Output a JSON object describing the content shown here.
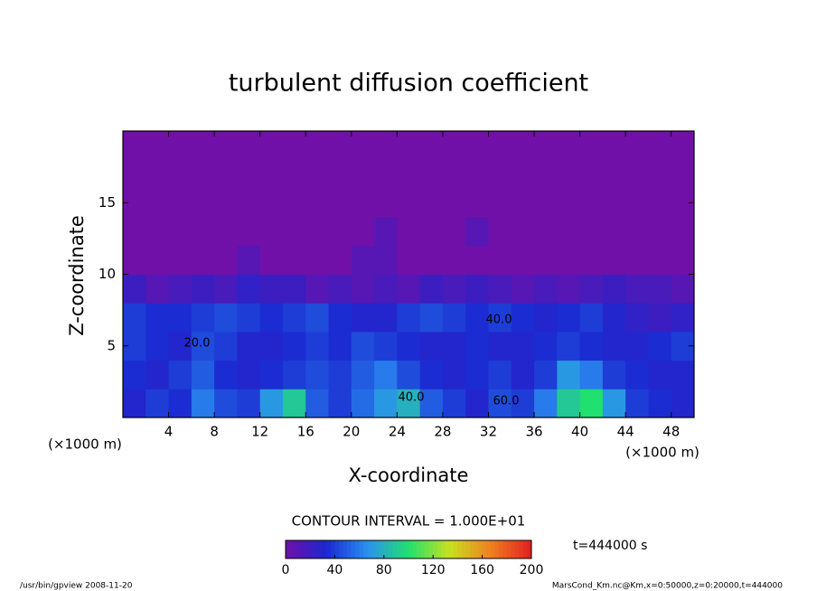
{
  "chart_data": {
    "type": "heatmap",
    "title": "turbulent diffusion coefficient",
    "x_label": "X-coordinate",
    "y_label": "Z-coordinate",
    "x_unit_label": "(×1000 m)",
    "y_unit_label": "(×1000 m)",
    "xlim": [
      0,
      50
    ],
    "ylim": [
      0,
      20
    ],
    "xticks": [
      4,
      8,
      12,
      16,
      20,
      24,
      28,
      32,
      36,
      40,
      44,
      48
    ],
    "yticks": [
      5,
      10,
      15
    ],
    "x": [
      1,
      3,
      5,
      7,
      9,
      11,
      13,
      15,
      17,
      19,
      21,
      23,
      25,
      27,
      29,
      31,
      33,
      35,
      37,
      39,
      41,
      43,
      45,
      47,
      49
    ],
    "y": [
      1,
      3,
      5,
      7,
      9,
      11,
      13,
      15,
      17,
      19
    ],
    "z": [
      [
        30,
        40,
        35,
        60,
        45,
        40,
        70,
        90,
        50,
        40,
        55,
        70,
        80,
        50,
        40,
        30,
        45,
        40,
        60,
        90,
        100,
        70,
        40,
        35,
        30
      ],
      [
        35,
        30,
        40,
        50,
        35,
        30,
        35,
        40,
        45,
        40,
        50,
        60,
        45,
        35,
        30,
        35,
        40,
        30,
        40,
        70,
        60,
        40,
        35,
        30,
        30
      ],
      [
        40,
        35,
        30,
        45,
        40,
        30,
        30,
        35,
        40,
        35,
        45,
        40,
        35,
        30,
        30,
        35,
        30,
        30,
        35,
        40,
        35,
        30,
        30,
        35,
        40
      ],
      [
        40,
        35,
        35,
        40,
        45,
        40,
        35,
        40,
        45,
        35,
        30,
        30,
        40,
        45,
        40,
        35,
        40,
        35,
        30,
        35,
        40,
        30,
        25,
        20,
        25
      ],
      [
        20,
        10,
        15,
        20,
        15,
        25,
        20,
        20,
        10,
        15,
        10,
        15,
        10,
        20,
        15,
        20,
        15,
        10,
        15,
        10,
        15,
        20,
        15,
        15,
        10
      ],
      [
        0,
        0,
        0,
        0,
        0,
        10,
        0,
        0,
        0,
        0,
        10,
        10,
        0,
        0,
        0,
        0,
        0,
        0,
        0,
        0,
        0,
        0,
        0,
        0,
        0
      ],
      [
        0,
        0,
        0,
        0,
        0,
        0,
        0,
        0,
        0,
        0,
        0,
        10,
        0,
        0,
        0,
        10,
        0,
        0,
        0,
        0,
        0,
        0,
        0,
        0,
        0
      ],
      [
        0,
        0,
        0,
        0,
        0,
        0,
        0,
        0,
        0,
        0,
        0,
        0,
        0,
        0,
        0,
        0,
        0,
        0,
        0,
        0,
        0,
        0,
        0,
        0,
        0
      ],
      [
        0,
        0,
        0,
        0,
        0,
        0,
        0,
        0,
        0,
        0,
        0,
        0,
        0,
        0,
        0,
        0,
        0,
        0,
        0,
        0,
        0,
        0,
        0,
        0,
        0
      ],
      [
        0,
        0,
        0,
        0,
        0,
        0,
        0,
        0,
        0,
        0,
        0,
        0,
        0,
        0,
        0,
        0,
        0,
        0,
        0,
        0,
        0,
        0,
        0,
        0,
        0
      ]
    ],
    "clim": [
      0,
      200
    ],
    "colormap": [
      "#7010a8",
      "#1a28d0",
      "#2a90f0",
      "#20e070",
      "#c8e020",
      "#f08020",
      "#e02020"
    ],
    "colorbar_ticks": [
      0,
      40,
      80,
      120,
      160,
      200
    ],
    "contour_labels": [
      "40.0",
      "40.0",
      "60.0",
      "20.0"
    ],
    "contour_interval": "CONTOUR INTERVAL = 1.000E+01",
    "time_label": "t=444000 s",
    "footer_left": "/usr/bin/gpview   2008-11-20",
    "footer_right": "MarsCond_Km.nc@Km,x=0:50000,z=0:20000,t=444000"
  }
}
